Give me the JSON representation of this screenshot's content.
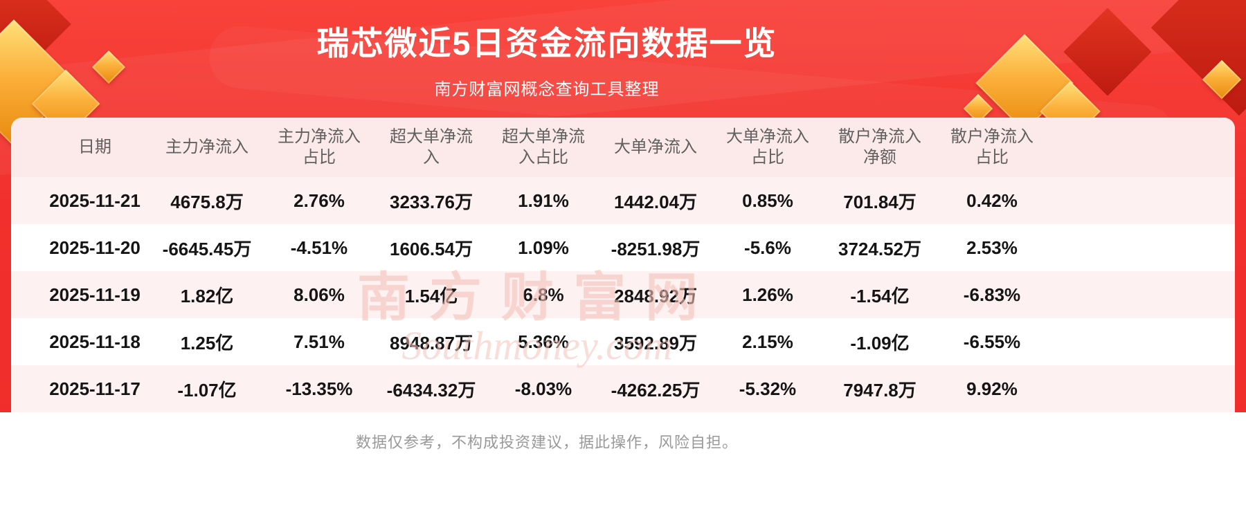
{
  "chart_data": {
    "type": "table",
    "title": "瑞芯微近5日资金流向数据一览",
    "subtitle": "南方财富网概念查询工具整理",
    "columns": [
      "日期",
      "主力净流入",
      "主力净流入占比",
      "超大单净流入",
      "超大单净流入占比",
      "大单净流入",
      "大单净流入占比",
      "散户净流入净额",
      "散户净流入占比"
    ],
    "rows": [
      [
        "2025-11-21",
        "4675.8万",
        "2.76%",
        "3233.76万",
        "1.91%",
        "1442.04万",
        "0.85%",
        "701.84万",
        "0.42%"
      ],
      [
        "2025-11-20",
        "-6645.45万",
        "-4.51%",
        "1606.54万",
        "1.09%",
        "-8251.98万",
        "-5.6%",
        "3724.52万",
        "2.53%"
      ],
      [
        "2025-11-19",
        "1.82亿",
        "8.06%",
        "1.54亿",
        "6.8%",
        "2848.92万",
        "1.26%",
        "-1.54亿",
        "-6.83%"
      ],
      [
        "2025-11-18",
        "1.25亿",
        "7.51%",
        "8948.87万",
        "5.36%",
        "3592.89万",
        "2.15%",
        "-1.09亿",
        "-6.55%"
      ],
      [
        "2025-11-17",
        "-1.07亿",
        "-13.35%",
        "-6434.32万",
        "-8.03%",
        "-4262.25万",
        "-5.32%",
        "7947.8万",
        "9.92%"
      ]
    ],
    "legend_position": "none",
    "grid": false
  },
  "watermark": {
    "cn": "南方财富网",
    "en": "Southmoney.com"
  },
  "footer": {
    "disclaimer": "数据仅参考，不构成投资建议，据此操作，风险自担。"
  },
  "colors": {
    "background_red": "#f1302d",
    "gold_accent": "#fbb03b",
    "header_row": "#fce9e9",
    "stripe_row": "#fdf1f1",
    "title_text": "#ffffff",
    "cell_text": "#151515",
    "header_text": "#60605e",
    "disclaimer_text": "#999999",
    "watermark_pink": "#f4c1b9"
  }
}
